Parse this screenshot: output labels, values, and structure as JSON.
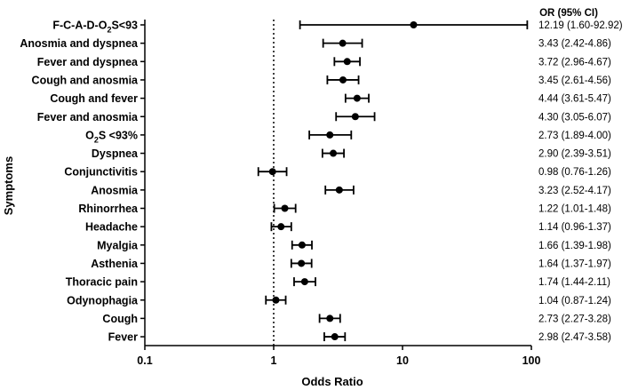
{
  "chart_data": {
    "type": "forest",
    "xscale": "log",
    "xlim": [
      0.1,
      100
    ],
    "xticks": [
      "0.1",
      "1",
      "10",
      "100"
    ],
    "xlabel": "Odds Ratio",
    "ylabel": "Symptoms",
    "or_header": "OR (95% CI)",
    "reference_line": 1,
    "rows": [
      {
        "label_main": "F-C-A-D-O",
        "label_sub": "2",
        "label_tail": "S<93",
        "or": 12.19,
        "lo": 1.6,
        "hi": 92.92,
        "text": "12.19 (1.60-92.92)"
      },
      {
        "label_main": "Anosmia and dyspnea",
        "or": 3.43,
        "lo": 2.42,
        "hi": 4.86,
        "text": "3.43 (2.42-4.86)"
      },
      {
        "label_main": "Fever and dyspnea",
        "or": 3.72,
        "lo": 2.96,
        "hi": 4.67,
        "text": "3.72 (2.96-4.67)"
      },
      {
        "label_main": "Cough and anosmia",
        "or": 3.45,
        "lo": 2.61,
        "hi": 4.56,
        "text": "3.45 (2.61-4.56)"
      },
      {
        "label_main": "Cough and fever",
        "or": 4.44,
        "lo": 3.61,
        "hi": 5.47,
        "text": "4.44 (3.61-5.47)"
      },
      {
        "label_main": "Fever and anosmia",
        "or": 4.3,
        "lo": 3.05,
        "hi": 6.07,
        "text": "4.30 (3.05-6.07)"
      },
      {
        "label_main": "O",
        "label_sub": "2",
        "label_tail": "S <93%",
        "or": 2.73,
        "lo": 1.89,
        "hi": 4.0,
        "text": "2.73 (1.89-4.00)"
      },
      {
        "label_main": "Dyspnea",
        "or": 2.9,
        "lo": 2.39,
        "hi": 3.51,
        "text": "2.90 (2.39-3.51)"
      },
      {
        "label_main": "Conjunctivitis",
        "or": 0.98,
        "lo": 0.76,
        "hi": 1.26,
        "text": "0.98 (0.76-1.26)"
      },
      {
        "label_main": "Anosmia",
        "or": 3.23,
        "lo": 2.52,
        "hi": 4.17,
        "text": "3.23 (2.52-4.17)"
      },
      {
        "label_main": "Rhinorrhea",
        "or": 1.22,
        "lo": 1.01,
        "hi": 1.48,
        "text": "1.22 (1.01-1.48)"
      },
      {
        "label_main": "Headache",
        "or": 1.14,
        "lo": 0.96,
        "hi": 1.37,
        "text": "1.14 (0.96-1.37)"
      },
      {
        "label_main": "Myalgia",
        "or": 1.66,
        "lo": 1.39,
        "hi": 1.98,
        "text": "1.66 (1.39-1.98)"
      },
      {
        "label_main": "Asthenia",
        "or": 1.64,
        "lo": 1.37,
        "hi": 1.97,
        "text": "1.64 (1.37-1.97)"
      },
      {
        "label_main": "Thoracic pain",
        "or": 1.74,
        "lo": 1.44,
        "hi": 2.11,
        "text": "1.74 (1.44-2.11)"
      },
      {
        "label_main": "Odynophagia",
        "or": 1.04,
        "lo": 0.87,
        "hi": 1.24,
        "text": "1.04 (0.87-1.24)"
      },
      {
        "label_main": "Cough",
        "or": 2.73,
        "lo": 2.27,
        "hi": 3.28,
        "text": "2.73 (2.27-3.28)"
      },
      {
        "label_main": "Fever",
        "or": 2.98,
        "lo": 2.47,
        "hi": 3.58,
        "text": "2.98 (2.47-3.58)"
      }
    ]
  }
}
